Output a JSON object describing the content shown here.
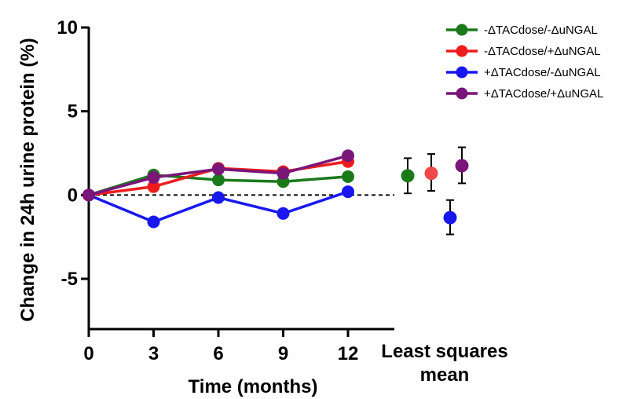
{
  "chart_data": {
    "type": "line",
    "xlabel": "Time (months)",
    "ylabel": "Change in 24h urine protein (%)",
    "x": [
      0,
      3,
      6,
      9,
      12
    ],
    "x_tick_labels": [
      "0",
      "3",
      "6",
      "9",
      "12"
    ],
    "y_ticks": [
      10,
      5,
      0,
      -5
    ],
    "y_tick_labels": [
      "10",
      "5",
      "0",
      "-5"
    ],
    "ylim": [
      -8,
      10
    ],
    "xlim": [
      0,
      14
    ],
    "reference_line": 0,
    "lsm_label": [
      "Least squares",
      "mean"
    ],
    "legend_position": "top-right",
    "series": [
      {
        "name": "-ΔTACdose/-ΔuNGAL",
        "color": "#1a7a1a",
        "values": [
          0,
          1.2,
          0.9,
          0.8,
          1.1
        ],
        "lsm": {
          "mean": 1.15,
          "lower": 0.1,
          "upper": 2.2,
          "color": "#1a7a1a"
        }
      },
      {
        "name": "-ΔTACdose/+ΔuNGAL",
        "color": "#ee1c1c",
        "values": [
          0,
          0.5,
          1.6,
          1.4,
          2.0
        ],
        "lsm": {
          "mean": 1.3,
          "lower": 0.25,
          "upper": 2.45,
          "color": "#f04848"
        }
      },
      {
        "name": "+ΔTACdose/-ΔuNGAL",
        "color": "#1818ee",
        "values": [
          0,
          -1.6,
          -0.15,
          -1.1,
          0.2
        ],
        "lsm": {
          "mean": -1.35,
          "lower": -2.35,
          "upper": -0.3,
          "color": "#1818ee"
        }
      },
      {
        "name": "+ΔTACdose/+ΔuNGAL",
        "color": "#7a157a",
        "values": [
          0,
          1.05,
          1.55,
          1.3,
          2.35
        ],
        "lsm": {
          "mean": 1.75,
          "lower": 0.7,
          "upper": 2.85,
          "color": "#7a157a"
        }
      }
    ]
  }
}
